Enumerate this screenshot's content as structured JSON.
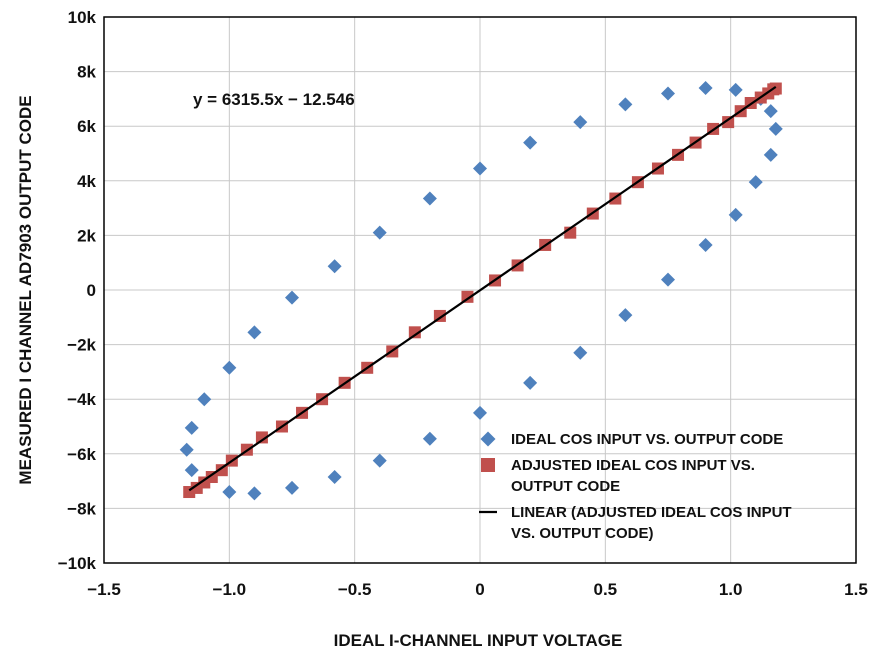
{
  "chart_data": {
    "type": "scatter",
    "xlabel": "IDEAL I-CHANNEL INPUT VOLTAGE",
    "ylabel": "MEASURED I CHANNEL AD7903 OUTPUT CODE",
    "xlim": [
      -1.5,
      1.5
    ],
    "ylim": [
      -10000,
      10000
    ],
    "xticks": [
      -1.5,
      -1.0,
      -0.5,
      0,
      0.5,
      1.0,
      1.5
    ],
    "xtick_labels": [
      "−1.5",
      "−1.0",
      "−0.5",
      "0",
      "0.5",
      "1.0",
      "1.5"
    ],
    "yticks": [
      -10000,
      -8000,
      -6000,
      -4000,
      -2000,
      0,
      2000,
      4000,
      6000,
      8000,
      10000
    ],
    "ytick_labels": [
      "−10k",
      "−8k",
      "−6k",
      "−4k",
      "−2k",
      "0",
      "2k",
      "4k",
      "6k",
      "8k",
      "10k"
    ],
    "grid": true,
    "legend_position": "bottom-right",
    "annotation": "y = 6315.5x − 12.546",
    "series": [
      {
        "name": "IDEAL COS INPUT VS. OUTPUT CODE",
        "marker": "diamond",
        "color": "#4f81bd",
        "points": [
          [
            1.18,
            5900
          ],
          [
            1.16,
            6550
          ],
          [
            1.12,
            7000
          ],
          [
            1.02,
            7330
          ],
          [
            0.9,
            7400
          ],
          [
            0.75,
            7200
          ],
          [
            0.58,
            6800
          ],
          [
            0.4,
            6150
          ],
          [
            0.2,
            5400
          ],
          [
            0.0,
            4450
          ],
          [
            -0.2,
            3350
          ],
          [
            -0.4,
            2100
          ],
          [
            -0.58,
            870
          ],
          [
            -0.75,
            -280
          ],
          [
            -0.9,
            -1550
          ],
          [
            -1.0,
            -2850
          ],
          [
            -1.1,
            -4000
          ],
          [
            -1.15,
            -5050
          ],
          [
            -1.17,
            -5850
          ],
          [
            -1.15,
            -6600
          ],
          [
            -1.0,
            -7400
          ],
          [
            -0.9,
            -7450
          ],
          [
            -0.75,
            -7250
          ],
          [
            -0.58,
            -6850
          ],
          [
            -0.4,
            -6250
          ],
          [
            -0.2,
            -5450
          ],
          [
            0.0,
            -4500
          ],
          [
            0.2,
            -3400
          ],
          [
            0.4,
            -2300
          ],
          [
            0.58,
            -920
          ],
          [
            0.75,
            380
          ],
          [
            0.9,
            1650
          ],
          [
            1.02,
            2750
          ],
          [
            1.1,
            3950
          ],
          [
            1.16,
            4950
          ]
        ]
      },
      {
        "name": "ADJUSTED IDEAL COS INPUT VS. OUTPUT CODE",
        "marker": "square",
        "color": "#c0504d",
        "points": [
          [
            -1.16,
            -7400
          ],
          [
            -1.13,
            -7250
          ],
          [
            -1.1,
            -7050
          ],
          [
            -1.07,
            -6850
          ],
          [
            -1.03,
            -6600
          ],
          [
            -0.99,
            -6250
          ],
          [
            -0.93,
            -5850
          ],
          [
            -0.87,
            -5400
          ],
          [
            -0.79,
            -5000
          ],
          [
            -0.71,
            -4500
          ],
          [
            -0.63,
            -4000
          ],
          [
            -0.54,
            -3400
          ],
          [
            -0.45,
            -2850
          ],
          [
            -0.35,
            -2250
          ],
          [
            -0.26,
            -1550
          ],
          [
            -0.16,
            -950
          ],
          [
            -0.05,
            -250
          ],
          [
            0.06,
            350
          ],
          [
            0.15,
            900
          ],
          [
            0.26,
            1650
          ],
          [
            0.36,
            2100
          ],
          [
            0.45,
            2800
          ],
          [
            0.54,
            3350
          ],
          [
            0.63,
            3950
          ],
          [
            0.71,
            4450
          ],
          [
            0.79,
            4950
          ],
          [
            0.86,
            5400
          ],
          [
            0.93,
            5900
          ],
          [
            0.99,
            6150
          ],
          [
            1.04,
            6550
          ],
          [
            1.08,
            6850
          ],
          [
            1.12,
            7050
          ],
          [
            1.15,
            7200
          ],
          [
            1.17,
            7350
          ],
          [
            1.18,
            7380
          ]
        ]
      },
      {
        "name": "LINEAR (ADJUSTED IDEAL COS INPUT VS. OUTPUT CODE)",
        "marker": "line",
        "color": "#000000",
        "slope": 6315.5,
        "intercept": -12.546,
        "x_range": [
          -1.16,
          1.18
        ]
      }
    ]
  }
}
